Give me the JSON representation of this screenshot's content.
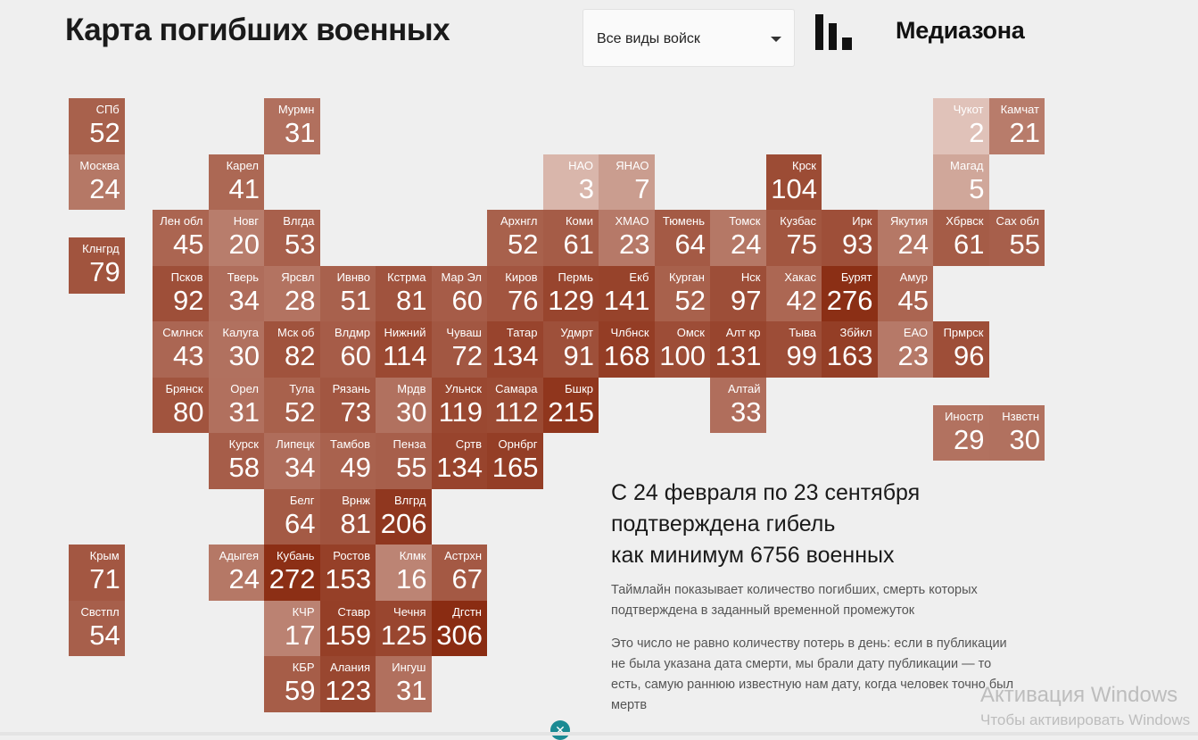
{
  "header": {
    "title": "Карта погибших военных",
    "filter_value": "Все виды войск",
    "brand": "Медиазона"
  },
  "tiles": [
    {
      "label": "СПб",
      "value": 52,
      "col": -1.5,
      "row": 0
    },
    {
      "label": "Мурмн",
      "value": 31,
      "col": 2,
      "row": 0
    },
    {
      "label": "Чукот",
      "value": 2,
      "col": 14,
      "row": 0
    },
    {
      "label": "Камчат",
      "value": 21,
      "col": 15,
      "row": 0
    },
    {
      "label": "Москва",
      "value": 24,
      "col": -1.5,
      "row": 1
    },
    {
      "label": "Карел",
      "value": 41,
      "col": 1,
      "row": 1
    },
    {
      "label": "НАО",
      "value": 3,
      "col": 7,
      "row": 1
    },
    {
      "label": "ЯНАО",
      "value": 7,
      "col": 8,
      "row": 1
    },
    {
      "label": "Крск",
      "value": 104,
      "col": 11,
      "row": 1
    },
    {
      "label": "Магад",
      "value": 5,
      "col": 14,
      "row": 1
    },
    {
      "label": "Лен обл",
      "value": 45,
      "col": 0,
      "row": 2
    },
    {
      "label": "Новг",
      "value": 20,
      "col": 1,
      "row": 2
    },
    {
      "label": "Влгда",
      "value": 53,
      "col": 2,
      "row": 2
    },
    {
      "label": "Архнгл",
      "value": 52,
      "col": 6,
      "row": 2
    },
    {
      "label": "Коми",
      "value": 61,
      "col": 7,
      "row": 2
    },
    {
      "label": "ХМАО",
      "value": 23,
      "col": 8,
      "row": 2
    },
    {
      "label": "Тюмень",
      "value": 64,
      "col": 9,
      "row": 2
    },
    {
      "label": "Томск",
      "value": 24,
      "col": 10,
      "row": 2
    },
    {
      "label": "Кузбас",
      "value": 75,
      "col": 11,
      "row": 2
    },
    {
      "label": "Ирк",
      "value": 93,
      "col": 12,
      "row": 2
    },
    {
      "label": "Якутия",
      "value": 24,
      "col": 13,
      "row": 2
    },
    {
      "label": "Хбрвск",
      "value": 61,
      "col": 14,
      "row": 2
    },
    {
      "label": "Сах обл",
      "value": 55,
      "col": 15,
      "row": 2
    },
    {
      "label": "Клнгрд",
      "value": 79,
      "col": -1.5,
      "row": 2.5
    },
    {
      "label": "Псков",
      "value": 92,
      "col": 0,
      "row": 3
    },
    {
      "label": "Тверь",
      "value": 34,
      "col": 1,
      "row": 3
    },
    {
      "label": "Ярсвл",
      "value": 28,
      "col": 2,
      "row": 3
    },
    {
      "label": "Ивнво",
      "value": 51,
      "col": 3,
      "row": 3
    },
    {
      "label": "Кстрма",
      "value": 81,
      "col": 4,
      "row": 3
    },
    {
      "label": "Мар Эл",
      "value": 60,
      "col": 5,
      "row": 3
    },
    {
      "label": "Киров",
      "value": 76,
      "col": 6,
      "row": 3
    },
    {
      "label": "Пермь",
      "value": 129,
      "col": 7,
      "row": 3
    },
    {
      "label": "Екб",
      "value": 141,
      "col": 8,
      "row": 3
    },
    {
      "label": "Курган",
      "value": 52,
      "col": 9,
      "row": 3
    },
    {
      "label": "Нск",
      "value": 97,
      "col": 10,
      "row": 3
    },
    {
      "label": "Хакас",
      "value": 42,
      "col": 11,
      "row": 3
    },
    {
      "label": "Бурят",
      "value": 276,
      "col": 12,
      "row": 3
    },
    {
      "label": "Амур",
      "value": 45,
      "col": 13,
      "row": 3
    },
    {
      "label": "Смлнск",
      "value": 43,
      "col": 0,
      "row": 4
    },
    {
      "label": "Калуга",
      "value": 30,
      "col": 1,
      "row": 4
    },
    {
      "label": "Мск об",
      "value": 82,
      "col": 2,
      "row": 4
    },
    {
      "label": "Влдмр",
      "value": 60,
      "col": 3,
      "row": 4
    },
    {
      "label": "Нижний",
      "value": 114,
      "col": 4,
      "row": 4
    },
    {
      "label": "Чуваш",
      "value": 72,
      "col": 5,
      "row": 4
    },
    {
      "label": "Татар",
      "value": 134,
      "col": 6,
      "row": 4
    },
    {
      "label": "Удмрт",
      "value": 91,
      "col": 7,
      "row": 4
    },
    {
      "label": "Члбнск",
      "value": 168,
      "col": 8,
      "row": 4
    },
    {
      "label": "Омск",
      "value": 100,
      "col": 9,
      "row": 4
    },
    {
      "label": "Алт кр",
      "value": 131,
      "col": 10,
      "row": 4
    },
    {
      "label": "Тыва",
      "value": 99,
      "col": 11,
      "row": 4
    },
    {
      "label": "Збйкл",
      "value": 163,
      "col": 12,
      "row": 4
    },
    {
      "label": "ЕАО",
      "value": 23,
      "col": 13,
      "row": 4
    },
    {
      "label": "Прмрск",
      "value": 96,
      "col": 14,
      "row": 4
    },
    {
      "label": "Брянск",
      "value": 80,
      "col": 0,
      "row": 5
    },
    {
      "label": "Орел",
      "value": 31,
      "col": 1,
      "row": 5
    },
    {
      "label": "Тула",
      "value": 52,
      "col": 2,
      "row": 5
    },
    {
      "label": "Рязань",
      "value": 73,
      "col": 3,
      "row": 5
    },
    {
      "label": "Мрдв",
      "value": 30,
      "col": 4,
      "row": 5
    },
    {
      "label": "Ульнск",
      "value": 119,
      "col": 5,
      "row": 5
    },
    {
      "label": "Самара",
      "value": 112,
      "col": 6,
      "row": 5
    },
    {
      "label": "Бшкр",
      "value": 215,
      "col": 7,
      "row": 5
    },
    {
      "label": "Алтай",
      "value": 33,
      "col": 10,
      "row": 5
    },
    {
      "label": "Иностр",
      "value": 29,
      "col": 14,
      "row": 5.5
    },
    {
      "label": "Нзвстн",
      "value": 30,
      "col": 15,
      "row": 5.5
    },
    {
      "label": "Курск",
      "value": 58,
      "col": 1,
      "row": 6
    },
    {
      "label": "Липецк",
      "value": 34,
      "col": 2,
      "row": 6
    },
    {
      "label": "Тамбов",
      "value": 49,
      "col": 3,
      "row": 6
    },
    {
      "label": "Пенза",
      "value": 55,
      "col": 4,
      "row": 6
    },
    {
      "label": "Сртв",
      "value": 134,
      "col": 5,
      "row": 6
    },
    {
      "label": "Орнбрг",
      "value": 165,
      "col": 6,
      "row": 6
    },
    {
      "label": "Белг",
      "value": 64,
      "col": 2,
      "row": 7
    },
    {
      "label": "Врнж",
      "value": 81,
      "col": 3,
      "row": 7
    },
    {
      "label": "Влгрд",
      "value": 206,
      "col": 4,
      "row": 7
    },
    {
      "label": "Крым",
      "value": 71,
      "col": -1.5,
      "row": 8
    },
    {
      "label": "Адыгея",
      "value": 24,
      "col": 1,
      "row": 8
    },
    {
      "label": "Кубань",
      "value": 272,
      "col": 2,
      "row": 8
    },
    {
      "label": "Ростов",
      "value": 153,
      "col": 3,
      "row": 8
    },
    {
      "label": "Клмк",
      "value": 16,
      "col": 4,
      "row": 8
    },
    {
      "label": "Астрхн",
      "value": 67,
      "col": 5,
      "row": 8
    },
    {
      "label": "Свстпл",
      "value": 54,
      "col": -1.5,
      "row": 9
    },
    {
      "label": "КЧР",
      "value": 17,
      "col": 2,
      "row": 9
    },
    {
      "label": "Ставр",
      "value": 159,
      "col": 3,
      "row": 9
    },
    {
      "label": "Чечня",
      "value": 125,
      "col": 4,
      "row": 9
    },
    {
      "label": "Дгстн",
      "value": 306,
      "col": 5,
      "row": 9
    },
    {
      "label": "КБР",
      "value": 59,
      "col": 2,
      "row": 10
    },
    {
      "label": "Алания",
      "value": 123,
      "col": 3,
      "row": 10
    },
    {
      "label": "Ингуш",
      "value": 31,
      "col": 4,
      "row": 10
    }
  ],
  "colors": {
    "low": "#e2c6bd",
    "high": "#8a2c12"
  },
  "summary": {
    "line1": "С 24 февраля по 23 сентября",
    "line2": "подтверждена гибель",
    "line3": "как минимум 6756 военных"
  },
  "notes": {
    "p1": "Таймлайн показывает количество погибших, смерть которых подтверждена в заданный временной промежуток",
    "p2": "Это число не равно количеству потерь в день: если в публикации не была указана дата смерти, мы брали дату публикации — то есть, самую раннюю известную нам дату, когда человек точно был мертв"
  },
  "watermark": {
    "line1": "Активация Windows",
    "line2": "Чтобы активировать Windows"
  }
}
